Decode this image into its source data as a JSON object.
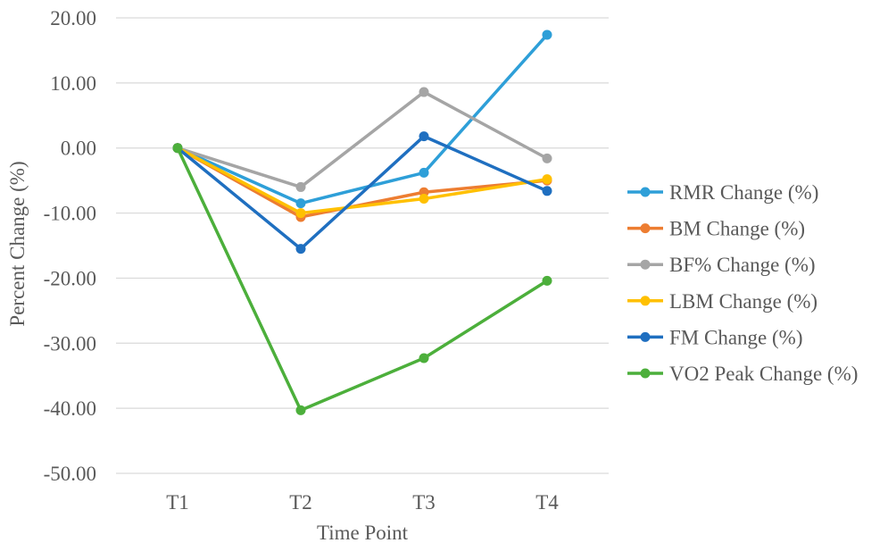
{
  "chart_data": {
    "type": "line",
    "title": "",
    "xlabel": "Time Point",
    "ylabel": "Percent Change (%)",
    "categories": [
      "T1",
      "T2",
      "T3",
      "T4"
    ],
    "ylim": [
      -50,
      20
    ],
    "yticks": [
      20,
      10,
      0,
      -10,
      -20,
      -30,
      -40,
      -50
    ],
    "ytick_labels": [
      "20.00",
      "10.00",
      "0.00",
      "-10.00",
      "-20.00",
      "-30.00",
      "-40.00",
      "-50.00"
    ],
    "grid": true,
    "legend_position": "right",
    "series": [
      {
        "name": "RMR Change (%)",
        "color": "#2E9FD8",
        "values": [
          0,
          -8.5,
          -3.8,
          17.4
        ]
      },
      {
        "name": "BM Change (%)",
        "color": "#ED7D31",
        "values": [
          0,
          -10.6,
          -6.8,
          -5.0
        ]
      },
      {
        "name": "BF% Change (%)",
        "color": "#A5A5A5",
        "values": [
          0,
          -6.0,
          8.6,
          -1.6
        ]
      },
      {
        "name": "LBM Change (%)",
        "color": "#FFC000",
        "values": [
          0,
          -10.0,
          -7.8,
          -4.8
        ]
      },
      {
        "name": "FM Change (%)",
        "color": "#1F6FC0",
        "values": [
          0,
          -15.5,
          1.8,
          -6.6
        ]
      },
      {
        "name": "VO2 Peak Change (%)",
        "color": "#4CAF3B",
        "values": [
          0,
          -40.3,
          -32.3,
          -20.4
        ]
      }
    ]
  }
}
